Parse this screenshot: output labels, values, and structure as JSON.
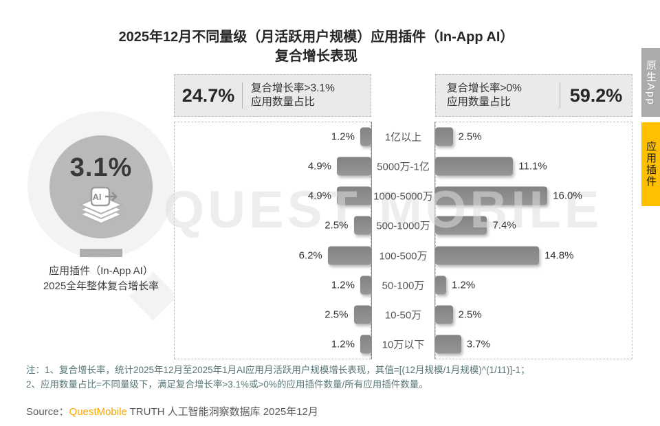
{
  "title": {
    "line1": "2025年12月不同量级（月活跃用户规模）应用插件（In-App AI）",
    "line2": "复合增长表现"
  },
  "side_tabs": [
    {
      "label": "原生App",
      "active": false,
      "color": "#ABABAB"
    },
    {
      "label": "应用插件",
      "active": true,
      "color": "#FFC000"
    }
  ],
  "overall": {
    "value": "3.1%",
    "icon": "ai-plugin-icon",
    "caption_line1": "应用插件（In-App AI）",
    "caption_line2": "2025全年整体复合增长率"
  },
  "summary_left": {
    "value": "24.7%",
    "label_line1": "复合增长率>3.1%",
    "label_line2": "应用数量占比"
  },
  "summary_right": {
    "value": "59.2%",
    "label_line1": "复合增长率>0%",
    "label_line2": "应用数量占比"
  },
  "chart_data": {
    "type": "bar",
    "orientation": "horizontal-bidirectional",
    "title": "2025年12月不同量级（月活跃用户规模）应用插件（In-App AI）复合增长表现",
    "unit": "%",
    "categories": [
      "1亿以上",
      "5000万-1亿",
      "1000-5000万",
      "500-1000万",
      "100-500万",
      "50-100万",
      "10-50万",
      "10万以下"
    ],
    "series": [
      {
        "name": "复合增长率>3.1% 应用数量占比",
        "side": "left",
        "values": [
          1.2,
          4.9,
          4.9,
          2.5,
          6.2,
          1.2,
          2.5,
          1.2
        ]
      },
      {
        "name": "复合增长率>0% 应用数量占比",
        "side": "right",
        "values": [
          2.5,
          11.1,
          16.0,
          7.4,
          14.8,
          1.2,
          2.5,
          3.7
        ]
      }
    ],
    "value_labels": {
      "left": [
        "1.2%",
        "4.9%",
        "4.9%",
        "2.5%",
        "6.2%",
        "1.2%",
        "2.5%",
        "1.2%"
      ],
      "right": [
        "2.5%",
        "11.1%",
        "16.0%",
        "7.4%",
        "14.8%",
        "1.2%",
        "2.5%",
        "3.7%"
      ]
    },
    "legend_position": "none",
    "grid": false
  },
  "watermark": "QUEST MOBILE",
  "colors": {
    "accent_yellow": "#FFC000",
    "tab_gray": "#ABABAB",
    "bar_gray": "#8C8C8C",
    "brand_orange": "#F7A600",
    "note_teal": "#597676"
  },
  "notes": {
    "line1": "注：1、复合增长率，统计2025年12月至2025年1月AI应用月活跃用户规模增长表现，其值=[(12月规模/1月规模)^(1/11)]-1；",
    "line2": "2、应用数量占比=不同量级下，满足复合增长率>3.1%或>0%的应用插件数量/所有应用插件数量。"
  },
  "source": {
    "prefix": "Source：",
    "brand": "QuestMobile",
    "suffix": " TRUTH 人工智能洞察数据库 2025年12月"
  }
}
